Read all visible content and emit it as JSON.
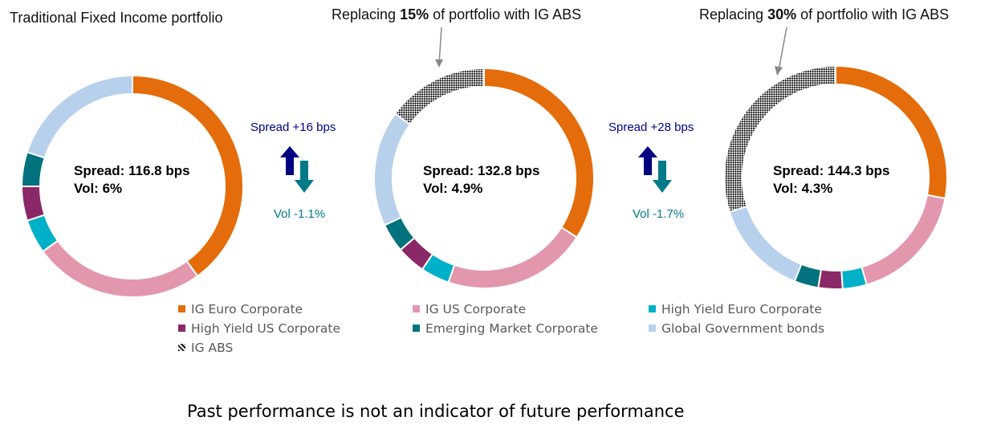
{
  "chart_data": [
    {
      "type": "pie",
      "donut": true,
      "title": "Traditional Fixed Income portfolio",
      "center_label": {
        "spread": "Spread: 116.8 bps",
        "vol": "Vol: 6%"
      },
      "categories": [
        "IG Euro Corporate",
        "IG US Corporate",
        "High Yield Euro Corporate",
        "High Yield US Corporate",
        "Emerging Market Corporate",
        "Global Government bonds",
        "IG ABS"
      ],
      "values": [
        40,
        25,
        5,
        5,
        5,
        20,
        0
      ]
    },
    {
      "type": "pie",
      "donut": true,
      "title_parts": [
        "Replacing ",
        "15%",
        " of portfolio with IG ABS"
      ],
      "center_label": {
        "spread": "Spread: 132.8 bps",
        "vol": "Vol: 4.9%"
      },
      "categories": [
        "IG Euro Corporate",
        "IG US Corporate",
        "High Yield Euro Corporate",
        "High Yield US Corporate",
        "Emerging Market Corporate",
        "Global Government bonds",
        "IG ABS"
      ],
      "values": [
        34,
        21.25,
        4.25,
        4.25,
        4.25,
        17,
        15
      ]
    },
    {
      "type": "pie",
      "donut": true,
      "title_parts": [
        "Replacing ",
        "30%",
        " of portfolio with IG ABS"
      ],
      "center_label": {
        "spread": "Spread: 144.3 bps",
        "vol": "Vol: 4.3%"
      },
      "categories": [
        "IG Euro Corporate",
        "IG US Corporate",
        "High Yield Euro Corporate",
        "High Yield US Corporate",
        "Emerging Market Corporate",
        "Global Government bonds",
        "IG ABS"
      ],
      "values": [
        28,
        17.5,
        3.5,
        3.5,
        3.5,
        14,
        30
      ]
    }
  ],
  "colors": [
    "#E46C0A",
    "#E397AC",
    "#00B0C8",
    "#8B2868",
    "#00727D",
    "#B7D0EC",
    "pattern-checker"
  ],
  "deltas": [
    {
      "spread": "Spread +16 bps",
      "vol": "Vol -1.1%"
    },
    {
      "spread": "Spread +28 bps",
      "vol": "Vol -1.7%"
    }
  ],
  "arrow_colors": {
    "up": "#000080",
    "down": "#007A87"
  },
  "legend": [
    "IG Euro Corporate",
    "IG US Corporate",
    "High Yield Euro Corporate",
    "High Yield US Corporate",
    "Emerging Market Corporate",
    "Global Government bonds",
    "IG ABS"
  ],
  "footer": "Past performance is not an indicator of future performance"
}
